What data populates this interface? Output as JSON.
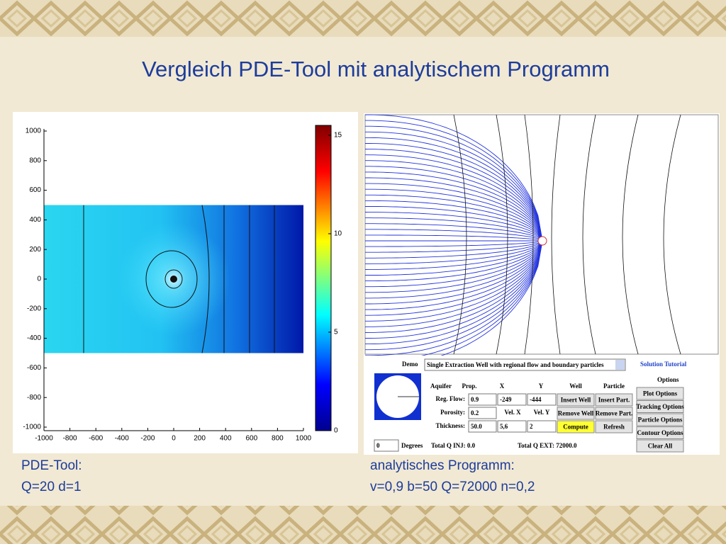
{
  "title": "Vergleich PDE-Tool mit analytischem Programm",
  "pde_plot": {
    "xlim": [
      -1000,
      1000
    ],
    "ylim": [
      -1000,
      1000
    ],
    "xticks": [
      -1000,
      -800,
      -600,
      -400,
      -200,
      0,
      200,
      400,
      600,
      800,
      1000
    ],
    "yticks": [
      -1000,
      -800,
      -600,
      -400,
      -200,
      0,
      200,
      400,
      600,
      800,
      1000
    ],
    "colorbar": {
      "lim": [
        0,
        15.5
      ],
      "ticks": [
        0,
        5,
        10,
        15
      ]
    }
  },
  "app": {
    "demo_label": "Demo",
    "demo_select": "Single Extraction Well with regional flow and boundary particles",
    "tutorial": "Solution Tutorial",
    "options_title": "Options",
    "headers": [
      "Aquifer",
      "Prop.",
      "X",
      "Y",
      "Well",
      "Particle"
    ],
    "rows": [
      {
        "label": "Reg. Flow:",
        "fields": [
          "0.9",
          "-249",
          "-444"
        ],
        "buttons": [
          "Insert Well",
          "Insert Part."
        ]
      },
      {
        "label": "Porosity:",
        "fields": [
          "0.2"
        ],
        "texts": [
          "Vel. X",
          "Vel. Y"
        ],
        "buttons": [
          "Remove Well",
          "Remove Part."
        ]
      },
      {
        "label": "Thickness:",
        "fields": [
          "50.0",
          "5,6",
          "2"
        ],
        "buttons": [
          "Compute",
          "Refresh"
        ]
      }
    ],
    "option_buttons": [
      "Plot Options",
      "Tracking Options",
      "Particle Options",
      "Contour Options",
      "Clear All"
    ],
    "angle": "0",
    "angle_unit": "Degrees",
    "total_inj": "Total Q INJ: 0.0",
    "total_ext": "Total Q EXT:  72000.0"
  },
  "captions": {
    "left": [
      "PDE-Tool:",
      "Q=20 d=1"
    ],
    "right": [
      "analytisches Programm:",
      "v=0,9 b=50 Q=72000 n=0,2"
    ]
  }
}
